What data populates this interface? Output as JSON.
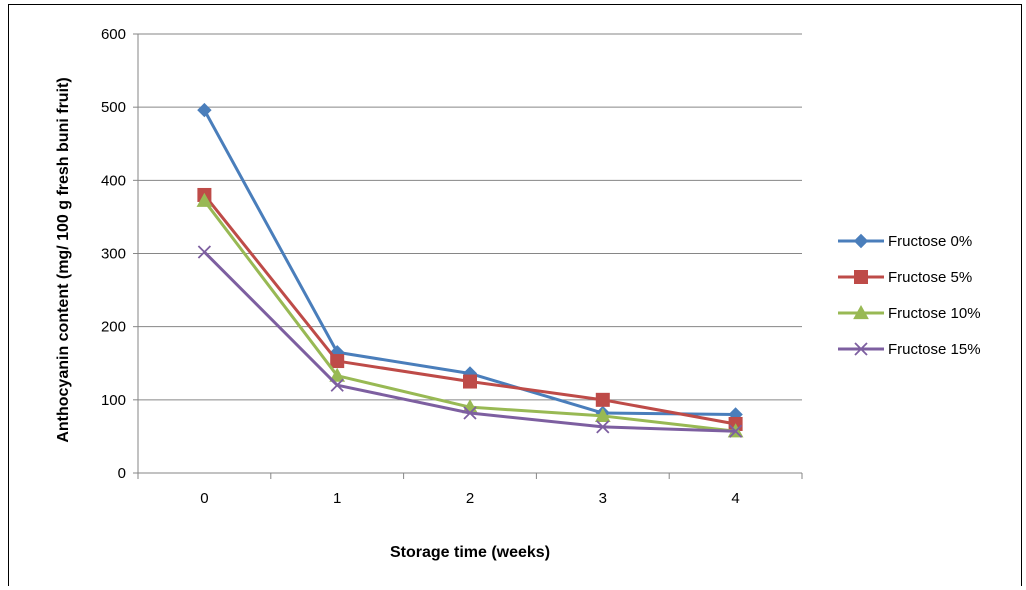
{
  "chart_data": {
    "type": "line",
    "title": "",
    "xlabel": "Storage time (weeks)",
    "ylabel": "Anthocyanin content (mg/ 100 g fresh buni fruit)",
    "x": [
      0,
      1,
      2,
      3,
      4
    ],
    "ylim": [
      0,
      600
    ],
    "yticks": [
      0,
      100,
      200,
      300,
      400,
      500,
      600
    ],
    "grid": true,
    "legend_position": "right",
    "series": [
      {
        "name": "Fructose 0%",
        "color": "#4a7ebb",
        "marker": "diamond",
        "values": [
          496,
          165,
          136,
          82,
          80
        ]
      },
      {
        "name": "Fructose 5%",
        "color": "#be4b48",
        "marker": "square",
        "values": [
          380,
          153,
          125,
          100,
          67
        ]
      },
      {
        "name": "Fructose 10%",
        "color": "#98b954",
        "marker": "triangle",
        "values": [
          372,
          133,
          90,
          78,
          57
        ]
      },
      {
        "name": "Fructose 15%",
        "color": "#7d5fa0",
        "marker": "x",
        "values": [
          302,
          120,
          82,
          63,
          57
        ]
      }
    ]
  }
}
